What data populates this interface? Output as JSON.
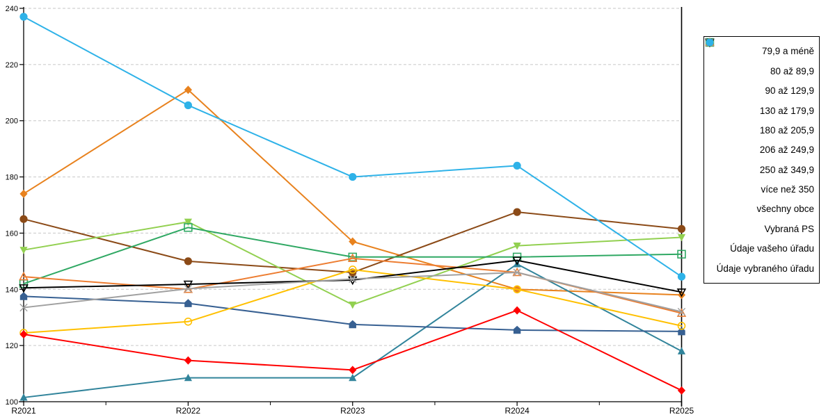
{
  "chart_data": {
    "type": "line",
    "title": "",
    "xlabel": "",
    "ylabel": "",
    "x_labels": [
      "R2021",
      "R2022",
      "R2023",
      "R2024",
      "R2025"
    ],
    "ylim": [
      100,
      240
    ],
    "y_ticks": [
      100,
      110,
      120,
      130,
      140,
      150,
      160,
      170,
      180,
      190,
      200,
      210,
      220,
      230,
      240
    ],
    "y_tick_labels": [
      "100",
      "120",
      "140",
      "160",
      "180",
      "200",
      "220",
      "240"
    ],
    "grid": "horizontal-dashed",
    "legend_position": "right-box",
    "series": [
      {
        "name": "79,9 a méně",
        "color": "#E8821E",
        "marker": "diamond",
        "values": [
          174,
          211,
          157,
          140,
          138
        ]
      },
      {
        "name": "80 až 89,9",
        "color": "#8B4A17",
        "marker": "circle",
        "values": [
          165,
          150,
          146,
          167.5,
          161.5
        ]
      },
      {
        "name": "90 až 129,9",
        "color": "#31849B",
        "marker": "triangle-up",
        "values": [
          101.5,
          108.5,
          108.5,
          149,
          118
        ]
      },
      {
        "name": "130 až 179,9",
        "color": "#376092",
        "marker": "pentagon",
        "values": [
          137.5,
          135,
          127.5,
          125.5,
          125
        ]
      },
      {
        "name": "180 až 205,9",
        "color": "#92D050",
        "marker": "triangle-down",
        "values": [
          154,
          164,
          134.5,
          155.5,
          158.5
        ]
      },
      {
        "name": "206 až 249,9",
        "color": "#2FA863",
        "marker": "square-open",
        "values": [
          142,
          162,
          151.5,
          151.5,
          152.5
        ]
      },
      {
        "name": "250 až 349,9",
        "color": "#FFC000",
        "marker": "circle-open",
        "values": [
          124.5,
          128.5,
          147,
          140,
          127
        ]
      },
      {
        "name": "více než 350",
        "color": "#ED7D31",
        "marker": "triangle-up-open",
        "values": [
          144.5,
          140,
          151,
          146,
          131.5
        ]
      },
      {
        "name": "všechny obce",
        "color": "#000000",
        "marker": "triangle-down-open",
        "values": [
          140.5,
          141.8,
          143.3,
          150.3,
          139
        ]
      },
      {
        "name": "Vybraná PS",
        "color": "#A0A0A0",
        "marker": "x",
        "values": [
          133.5,
          140.2,
          143.7,
          146,
          132
        ]
      },
      {
        "name": "Údaje vašeho úřadu",
        "color": "#FF0000",
        "marker": "diamond",
        "values": [
          124,
          114.7,
          111.3,
          132.5,
          104
        ]
      },
      {
        "name": "Údaje vybraného úřadu",
        "color": "#2EB2E8",
        "marker": "circle",
        "values": [
          237,
          205.5,
          180,
          184,
          144.5
        ]
      }
    ]
  },
  "style": {
    "grid_color": "#C6C6C6",
    "axis_color": "#000000",
    "background": "#FFFFFF"
  }
}
